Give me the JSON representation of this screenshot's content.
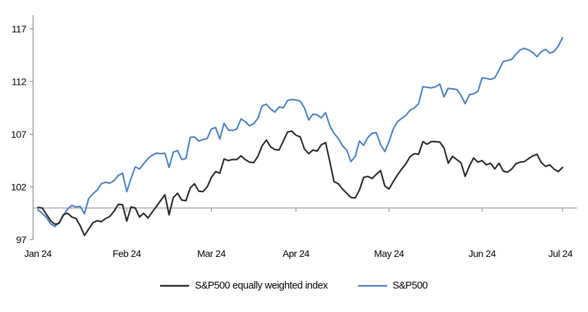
{
  "colors": {
    "background": "#FFFFFF",
    "axis": "#8F8F8F",
    "baseline": "#9A9A9A",
    "text": "#000000",
    "eqw_line": "#262626",
    "spx_line": "#4E81BD"
  },
  "chart_data": {
    "type": "line",
    "title": "",
    "grid": "off",
    "legend_position": "bottom-center",
    "x_axis": {
      "tick_labels": [
        "Jan 24",
        "Feb 24",
        "Mar 24",
        "Apr 24",
        "May 24",
        "Jun 24",
        "Jul 24"
      ],
      "tick_day_indices": [
        0,
        21,
        41,
        61,
        83,
        105,
        124
      ]
    },
    "y_axis": {
      "ticks": [
        97,
        102,
        107,
        112,
        117
      ],
      "min": 97,
      "max": 118.3,
      "baseline": 100
    },
    "series": [
      {
        "name": "S&P500 equally weighted index",
        "color": "#262626",
        "values": [
          100.05,
          100.0,
          99.4,
          98.8,
          98.45,
          98.55,
          99.35,
          99.5,
          99.15,
          99.0,
          98.3,
          97.4,
          98.0,
          98.6,
          98.8,
          98.7,
          99.0,
          99.2,
          99.7,
          100.35,
          100.3,
          98.75,
          100.1,
          100.0,
          99.15,
          99.5,
          99.05,
          99.6,
          100.15,
          100.7,
          101.25,
          99.35,
          101.0,
          101.4,
          100.75,
          100.7,
          101.9,
          102.3,
          101.6,
          101.55,
          102.0,
          102.9,
          103.45,
          103.3,
          104.65,
          104.5,
          104.6,
          104.6,
          104.95,
          104.6,
          104.35,
          104.3,
          104.9,
          105.9,
          106.45,
          105.8,
          105.55,
          105.5,
          106.35,
          107.2,
          107.3,
          106.9,
          106.75,
          105.6,
          105.15,
          105.5,
          105.4,
          106.0,
          106.2,
          104.4,
          102.5,
          102.3,
          101.8,
          101.4,
          101.0,
          100.95,
          101.7,
          102.9,
          103.0,
          102.8,
          103.2,
          103.55,
          102.1,
          101.8,
          102.5,
          103.15,
          103.7,
          104.2,
          104.9,
          105.15,
          105.1,
          106.3,
          106.05,
          106.3,
          106.3,
          106.25,
          105.7,
          104.25,
          104.9,
          104.6,
          104.3,
          103.0,
          104.0,
          104.75,
          104.35,
          104.5,
          104.1,
          104.25,
          103.7,
          104.25,
          103.5,
          103.4,
          103.7,
          104.2,
          104.35,
          104.4,
          104.7,
          104.95,
          105.1,
          104.3,
          103.95,
          104.1,
          103.7,
          103.45,
          103.85
        ]
      },
      {
        "name": "S&P500",
        "color": "#4E81BD",
        "values": [
          99.85,
          99.5,
          99.1,
          98.5,
          98.25,
          98.6,
          99.3,
          99.9,
          100.25,
          100.1,
          100.15,
          99.45,
          100.9,
          101.35,
          101.7,
          102.3,
          102.45,
          102.35,
          102.6,
          103.1,
          103.3,
          101.55,
          102.8,
          103.9,
          103.7,
          104.2,
          104.7,
          105.0,
          105.2,
          105.15,
          105.2,
          103.85,
          105.3,
          105.45,
          104.6,
          104.7,
          106.7,
          106.75,
          106.35,
          106.5,
          106.6,
          107.5,
          107.65,
          106.55,
          108.05,
          107.4,
          107.35,
          107.5,
          108.45,
          108.2,
          107.8,
          108.0,
          108.5,
          109.7,
          109.85,
          109.4,
          109.1,
          109.6,
          109.5,
          110.2,
          110.3,
          110.25,
          110.15,
          109.5,
          108.35,
          108.9,
          108.85,
          108.55,
          109.05,
          107.8,
          107.1,
          106.6,
          105.9,
          105.5,
          104.4,
          104.9,
          106.35,
          105.95,
          106.7,
          107.1,
          107.15,
          106.0,
          105.35,
          106.3,
          107.5,
          108.2,
          108.5,
          108.8,
          109.3,
          109.5,
          109.9,
          111.5,
          111.45,
          111.4,
          111.5,
          111.75,
          110.55,
          111.35,
          111.3,
          111.25,
          110.7,
          109.9,
          110.75,
          110.85,
          111.05,
          112.35,
          112.3,
          112.2,
          112.35,
          113.1,
          113.9,
          114.0,
          114.1,
          114.6,
          115.0,
          115.15,
          115.0,
          114.75,
          114.35,
          114.85,
          115.05,
          114.7,
          114.85,
          115.35,
          116.15
        ]
      }
    ]
  }
}
